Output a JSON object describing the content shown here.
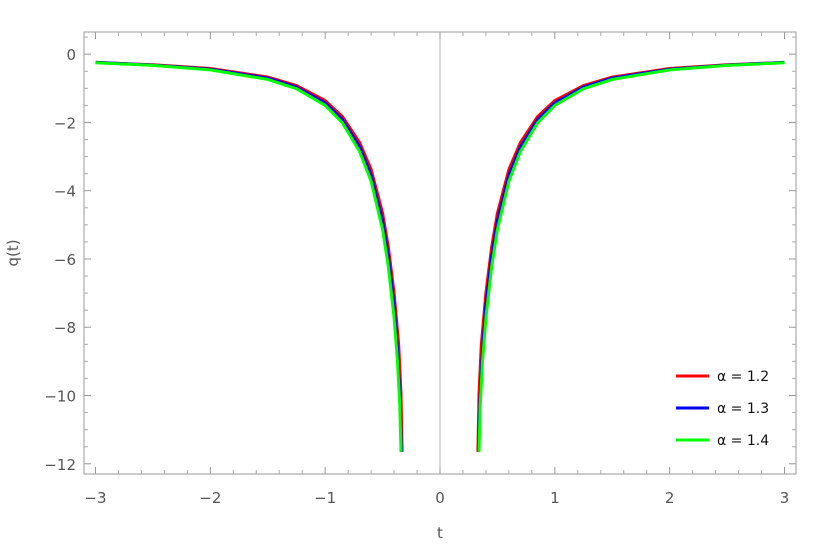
{
  "chart_data": {
    "type": "line",
    "xlabel": "t",
    "ylabel": "q(t)",
    "xlim": [
      -3.1,
      3.1
    ],
    "ylim": [
      -12.3,
      0.65
    ],
    "x_ticks": [
      -3,
      -2,
      -1,
      0,
      1,
      2,
      3
    ],
    "x_tick_labels": [
      "−3",
      "−2",
      "−1",
      "0",
      "1",
      "2",
      "3"
    ],
    "y_ticks": [
      0,
      -2,
      -4,
      -6,
      -8,
      -10,
      -12
    ],
    "y_tick_labels": [
      "0",
      "−2",
      "−4",
      "−6",
      "−8",
      "−10",
      "−12"
    ],
    "legend_position": "bottom-right",
    "grid": false,
    "series": [
      {
        "name": "α = 1.2",
        "color": "#ff0000",
        "left_branch": {
          "x": [
            -3.0,
            -2.5,
            -2.0,
            -1.5,
            -1.25,
            -1.0,
            -0.85,
            -0.7,
            -0.6,
            -0.5,
            -0.45,
            -0.4,
            -0.36,
            -0.34,
            -0.33
          ],
          "y": [
            -0.24,
            -0.31,
            -0.42,
            -0.67,
            -0.92,
            -1.36,
            -1.83,
            -2.59,
            -3.38,
            -4.66,
            -5.64,
            -7.0,
            -8.52,
            -9.95,
            -11.65
          ]
        },
        "right_branch": {
          "x": [
            0.33,
            0.34,
            0.36,
            0.4,
            0.45,
            0.5,
            0.6,
            0.7,
            0.85,
            1.0,
            1.25,
            1.5,
            2.0,
            2.5,
            3.0
          ],
          "y": [
            -11.65,
            -9.95,
            -8.52,
            -7.0,
            -5.64,
            -4.66,
            -3.38,
            -2.59,
            -1.83,
            -1.36,
            -0.92,
            -0.67,
            -0.42,
            -0.31,
            -0.24
          ]
        }
      },
      {
        "name": "α = 1.3",
        "color": "#0000ff",
        "left_branch": {
          "x": [
            -3.0,
            -2.5,
            -2.0,
            -1.5,
            -1.25,
            -1.0,
            -0.85,
            -0.7,
            -0.6,
            -0.5,
            -0.45,
            -0.4,
            -0.37,
            -0.35,
            -0.335
          ],
          "y": [
            -0.24,
            -0.32,
            -0.44,
            -0.7,
            -0.96,
            -1.43,
            -1.92,
            -2.72,
            -3.55,
            -4.9,
            -5.93,
            -7.36,
            -8.68,
            -10.0,
            -11.65
          ]
        },
        "right_branch": {
          "x": [
            0.335,
            0.35,
            0.37,
            0.4,
            0.45,
            0.5,
            0.6,
            0.7,
            0.85,
            1.0,
            1.25,
            1.5,
            2.0,
            2.5,
            3.0
          ],
          "y": [
            -11.65,
            -10.0,
            -8.68,
            -7.36,
            -5.93,
            -4.9,
            -3.55,
            -2.72,
            -1.92,
            -1.43,
            -0.96,
            -0.7,
            -0.44,
            -0.32,
            -0.24
          ]
        }
      },
      {
        "name": "α = 1.4",
        "color": "#00ff00",
        "left_branch": {
          "x": [
            -3.0,
            -2.5,
            -2.0,
            -1.5,
            -1.25,
            -1.0,
            -0.85,
            -0.7,
            -0.6,
            -0.5,
            -0.45,
            -0.4,
            -0.37,
            -0.35,
            -0.34
          ],
          "y": [
            -0.25,
            -0.33,
            -0.46,
            -0.74,
            -1.01,
            -1.5,
            -2.01,
            -2.85,
            -3.72,
            -5.14,
            -6.22,
            -7.72,
            -9.0,
            -10.3,
            -11.65
          ]
        },
        "right_branch": {
          "x": [
            0.34,
            0.35,
            0.37,
            0.4,
            0.45,
            0.5,
            0.6,
            0.7,
            0.85,
            1.0,
            1.25,
            1.5,
            2.0,
            2.5,
            3.0
          ],
          "y": [
            -11.65,
            -10.3,
            -9.0,
            -7.72,
            -6.22,
            -5.14,
            -3.72,
            -2.85,
            -2.01,
            -1.5,
            -1.01,
            -0.74,
            -0.46,
            -0.33,
            -0.25
          ]
        }
      }
    ]
  }
}
